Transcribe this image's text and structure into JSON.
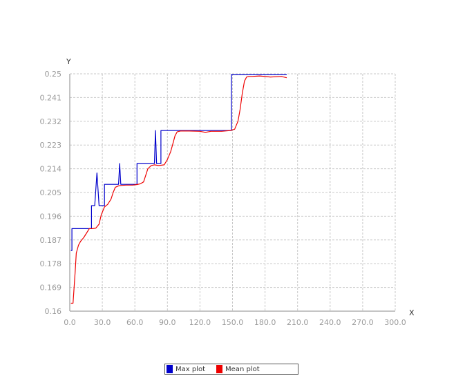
{
  "chart_data": {
    "type": "line",
    "title": "",
    "xlabel": "X",
    "ylabel": "Y",
    "xlim": [
      0,
      300
    ],
    "ylim": [
      0.16,
      0.25
    ],
    "grid": true,
    "legend_position": "bottom-center",
    "x_ticks": [
      "0.0",
      "30.0",
      "60.0",
      "90.0",
      "120.0",
      "150.0",
      "180.0",
      "210.0",
      "240.0",
      "270.0",
      "300.0"
    ],
    "y_ticks": [
      "0.16",
      "0.169",
      "0.178",
      "0.187",
      "0.196",
      "0.205",
      "0.214",
      "0.223",
      "0.232",
      "0.241",
      "0.25"
    ],
    "series": [
      {
        "name": "Max plot",
        "color": "#0000cc",
        "x": [
          1,
          2,
          2,
          20,
          20,
          23,
          23,
          25,
          27,
          27,
          32,
          32,
          45,
          46,
          47,
          62,
          62,
          78,
          79,
          80,
          82,
          84,
          84,
          149,
          149,
          200
        ],
        "y": [
          0.183,
          0.183,
          0.1913,
          0.1913,
          0.2,
          0.2,
          0.2,
          0.2124,
          0.2,
          0.2,
          0.2,
          0.2081,
          0.2081,
          0.216,
          0.2081,
          0.2081,
          0.216,
          0.216,
          0.2285,
          0.216,
          0.216,
          0.216,
          0.2285,
          0.2285,
          0.2497,
          0.2497
        ]
      },
      {
        "name": "Mean plot",
        "color": "#ee0000",
        "x": [
          1,
          3,
          5,
          6,
          8,
          10,
          13,
          15,
          18,
          21,
          24,
          27,
          29,
          32,
          35,
          38,
          40,
          42,
          45,
          48,
          52,
          58,
          62,
          65,
          68,
          70,
          72,
          75,
          78,
          82,
          87,
          90,
          93,
          95,
          97,
          99,
          102,
          110,
          120,
          125,
          130,
          140,
          148,
          152,
          155,
          157,
          159,
          161,
          163,
          165,
          168,
          175,
          185,
          195,
          200
        ],
        "y": [
          0.163,
          0.163,
          0.175,
          0.182,
          0.185,
          0.1865,
          0.188,
          0.1893,
          0.1913,
          0.1913,
          0.1915,
          0.193,
          0.1965,
          0.1995,
          0.2005,
          0.2025,
          0.205,
          0.207,
          0.2075,
          0.2077,
          0.2078,
          0.2078,
          0.208,
          0.2083,
          0.209,
          0.2115,
          0.214,
          0.2152,
          0.2155,
          0.2152,
          0.2155,
          0.2175,
          0.2205,
          0.2235,
          0.2265,
          0.228,
          0.2283,
          0.2283,
          0.2282,
          0.2278,
          0.2282,
          0.2282,
          0.2285,
          0.229,
          0.232,
          0.2365,
          0.2425,
          0.2472,
          0.2488,
          0.249,
          0.249,
          0.2492,
          0.2488,
          0.249,
          0.2485
        ]
      }
    ]
  }
}
